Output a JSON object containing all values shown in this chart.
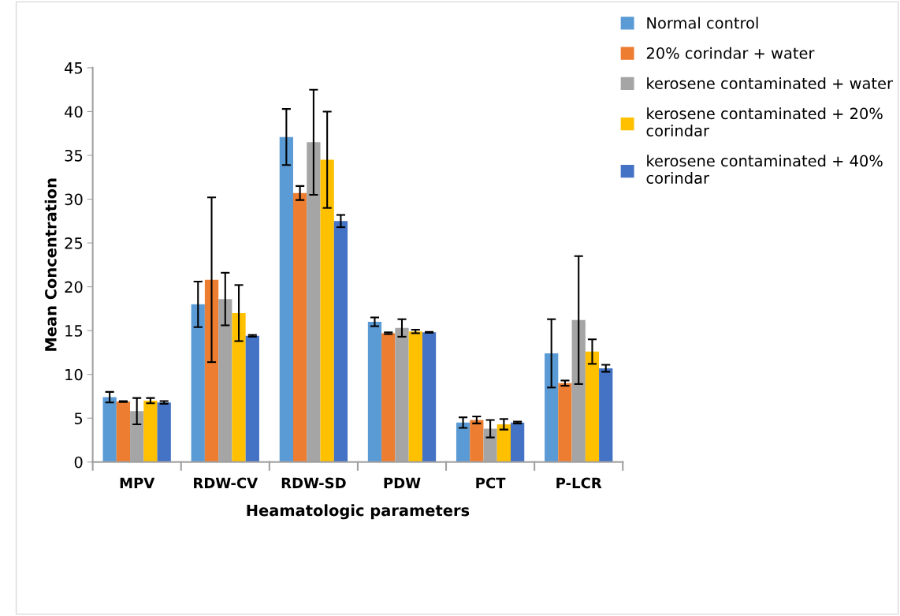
{
  "chart_data": {
    "type": "bar",
    "xlabel": "Heamatologic parameters",
    "ylabel": "Mean Concentration",
    "categories": [
      "MPV",
      "RDW-CV",
      "RDW-SD",
      "PDW",
      "PCT",
      "P-LCR"
    ],
    "ylim": [
      0,
      45
    ],
    "yticks": [
      0,
      5,
      10,
      15,
      20,
      25,
      30,
      35,
      40,
      45
    ],
    "grid": false,
    "legend": "top right",
    "series": [
      {
        "name": "Normal control",
        "color": "#5b9bd5",
        "values": [
          7.4,
          18.0,
          37.1,
          16.0,
          4.5,
          12.4
        ],
        "errors": [
          0.6,
          2.6,
          3.2,
          0.5,
          0.6,
          3.9
        ]
      },
      {
        "name": "20% corindar + water",
        "color": "#ed7d31",
        "values": [
          6.9,
          20.8,
          30.7,
          14.7,
          4.8,
          9.0
        ],
        "errors": [
          0.05,
          9.4,
          0.8,
          0.1,
          0.4,
          0.3
        ]
      },
      {
        "name": "kerosene contaminated + water",
        "color": "#a5a5a5",
        "values": [
          5.8,
          18.6,
          36.5,
          15.3,
          3.8,
          16.2
        ],
        "errors": [
          1.5,
          3.0,
          6.0,
          1.0,
          1.0,
          7.3
        ]
      },
      {
        "name": "kerosene contaminated + 20% corindar",
        "color": "#ffc000",
        "values": [
          7.0,
          17.0,
          34.5,
          14.9,
          4.3,
          12.6
        ],
        "errors": [
          0.3,
          3.2,
          5.5,
          0.2,
          0.6,
          1.4
        ]
      },
      {
        "name": "kerosene contaminated + 40% corindar",
        "color": "#4472c4",
        "values": [
          6.8,
          14.4,
          27.5,
          14.8,
          4.5,
          10.7
        ],
        "errors": [
          0.15,
          0.1,
          0.7,
          0.05,
          0.1,
          0.4
        ]
      }
    ]
  }
}
